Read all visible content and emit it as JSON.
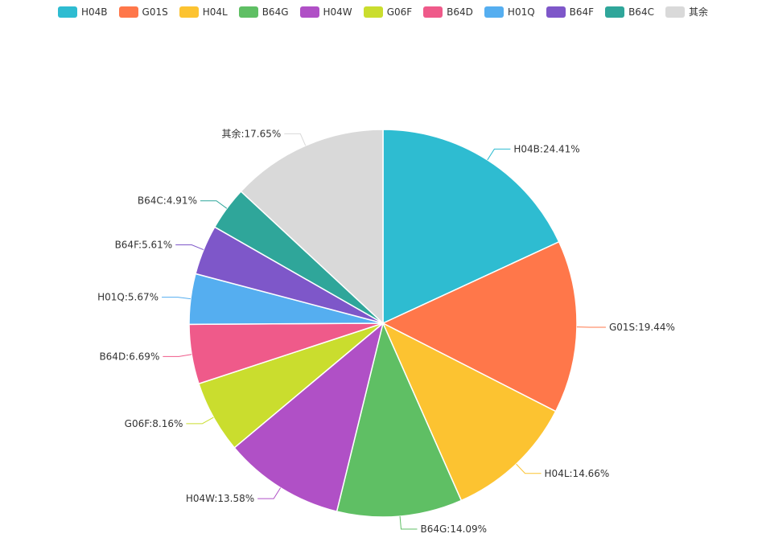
{
  "chart_data": {
    "type": "pie",
    "legend_position": "top",
    "slices": [
      {
        "name": "H04B",
        "value": 24.41,
        "label": "H04B:24.41%",
        "color": "#2ebcd1"
      },
      {
        "name": "G01S",
        "value": 19.44,
        "label": "G01S:19.44%",
        "color": "#ff774a"
      },
      {
        "name": "H04L",
        "value": 14.66,
        "label": "H04L:14.66%",
        "color": "#fcc331"
      },
      {
        "name": "B64G",
        "value": 14.09,
        "label": "B64G:14.09%",
        "color": "#5fbf64"
      },
      {
        "name": "H04W",
        "value": 13.58,
        "label": "H04W:13.58%",
        "color": "#b050c6"
      },
      {
        "name": "G06F",
        "value": 8.16,
        "label": "G06F:8.16%",
        "color": "#cadd2e"
      },
      {
        "name": "B64D",
        "value": 6.69,
        "label": "B64D:6.69%",
        "color": "#ef5a8a"
      },
      {
        "name": "H01Q",
        "value": 5.67,
        "label": "H01Q:5.67%",
        "color": "#55aef0"
      },
      {
        "name": "B64F",
        "value": 5.61,
        "label": "B64F:5.61%",
        "color": "#7e57c9"
      },
      {
        "name": "B64C",
        "value": 4.91,
        "label": "B64C:4.91%",
        "color": "#2fa69a"
      },
      {
        "name": "其余",
        "value": 17.65,
        "label": "其余:17.65%",
        "color": "#d9d9d9"
      }
    ]
  }
}
